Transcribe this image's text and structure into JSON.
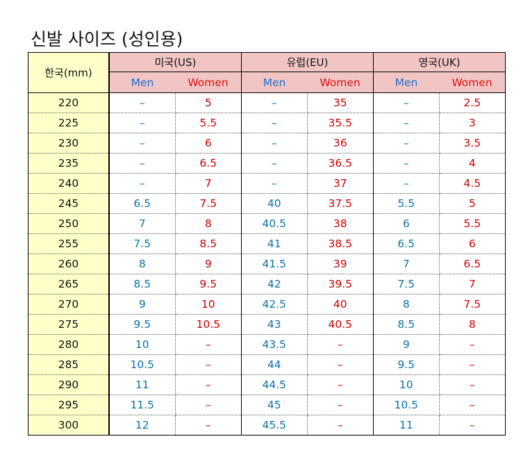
{
  "title": "신발 사이즈 (성인용)",
  "header": {
    "korea": "한국(mm)",
    "groups": [
      "미국(US)",
      "유럽(EU)",
      "영국(UK)"
    ],
    "men": "Men",
    "women": "Women"
  },
  "rows": [
    [
      "220",
      "–",
      "5",
      "–",
      "35",
      "–",
      "2.5"
    ],
    [
      "225",
      "–",
      "5.5",
      "–",
      "35.5",
      "–",
      "3"
    ],
    [
      "230",
      "–",
      "6",
      "–",
      "36",
      "–",
      "3.5"
    ],
    [
      "235",
      "–",
      "6.5",
      "–",
      "36.5",
      "–",
      "4"
    ],
    [
      "240",
      "–",
      "7",
      "–",
      "37",
      "–",
      "4.5"
    ],
    [
      "245",
      "6.5",
      "7.5",
      "40",
      "37.5",
      "5.5",
      "5"
    ],
    [
      "250",
      "7",
      "8",
      "40.5",
      "38",
      "6",
      "5.5"
    ],
    [
      "255",
      "7.5",
      "8.5",
      "41",
      "38.5",
      "6.5",
      "6"
    ],
    [
      "260",
      "8",
      "9",
      "41.5",
      "39",
      "7",
      "6.5"
    ],
    [
      "265",
      "8.5",
      "9.5",
      "42",
      "39.5",
      "7.5",
      "7"
    ],
    [
      "270",
      "9",
      "10",
      "42.5",
      "40",
      "8",
      "7.5"
    ],
    [
      "275",
      "9.5",
      "10.5",
      "43",
      "40.5",
      "8.5",
      "8"
    ],
    [
      "280",
      "10",
      "–",
      "43.5",
      "–",
      "9",
      "–"
    ],
    [
      "285",
      "10.5",
      "–",
      "44",
      "–",
      "9.5",
      "–"
    ],
    [
      "290",
      "11",
      "–",
      "44.5",
      "–",
      "10",
      "–"
    ],
    [
      "295",
      "11.5",
      "–",
      "45",
      "–",
      "10.5",
      "–"
    ],
    [
      "300",
      "12",
      "–",
      "45.5",
      "–",
      "11",
      "–"
    ]
  ]
}
